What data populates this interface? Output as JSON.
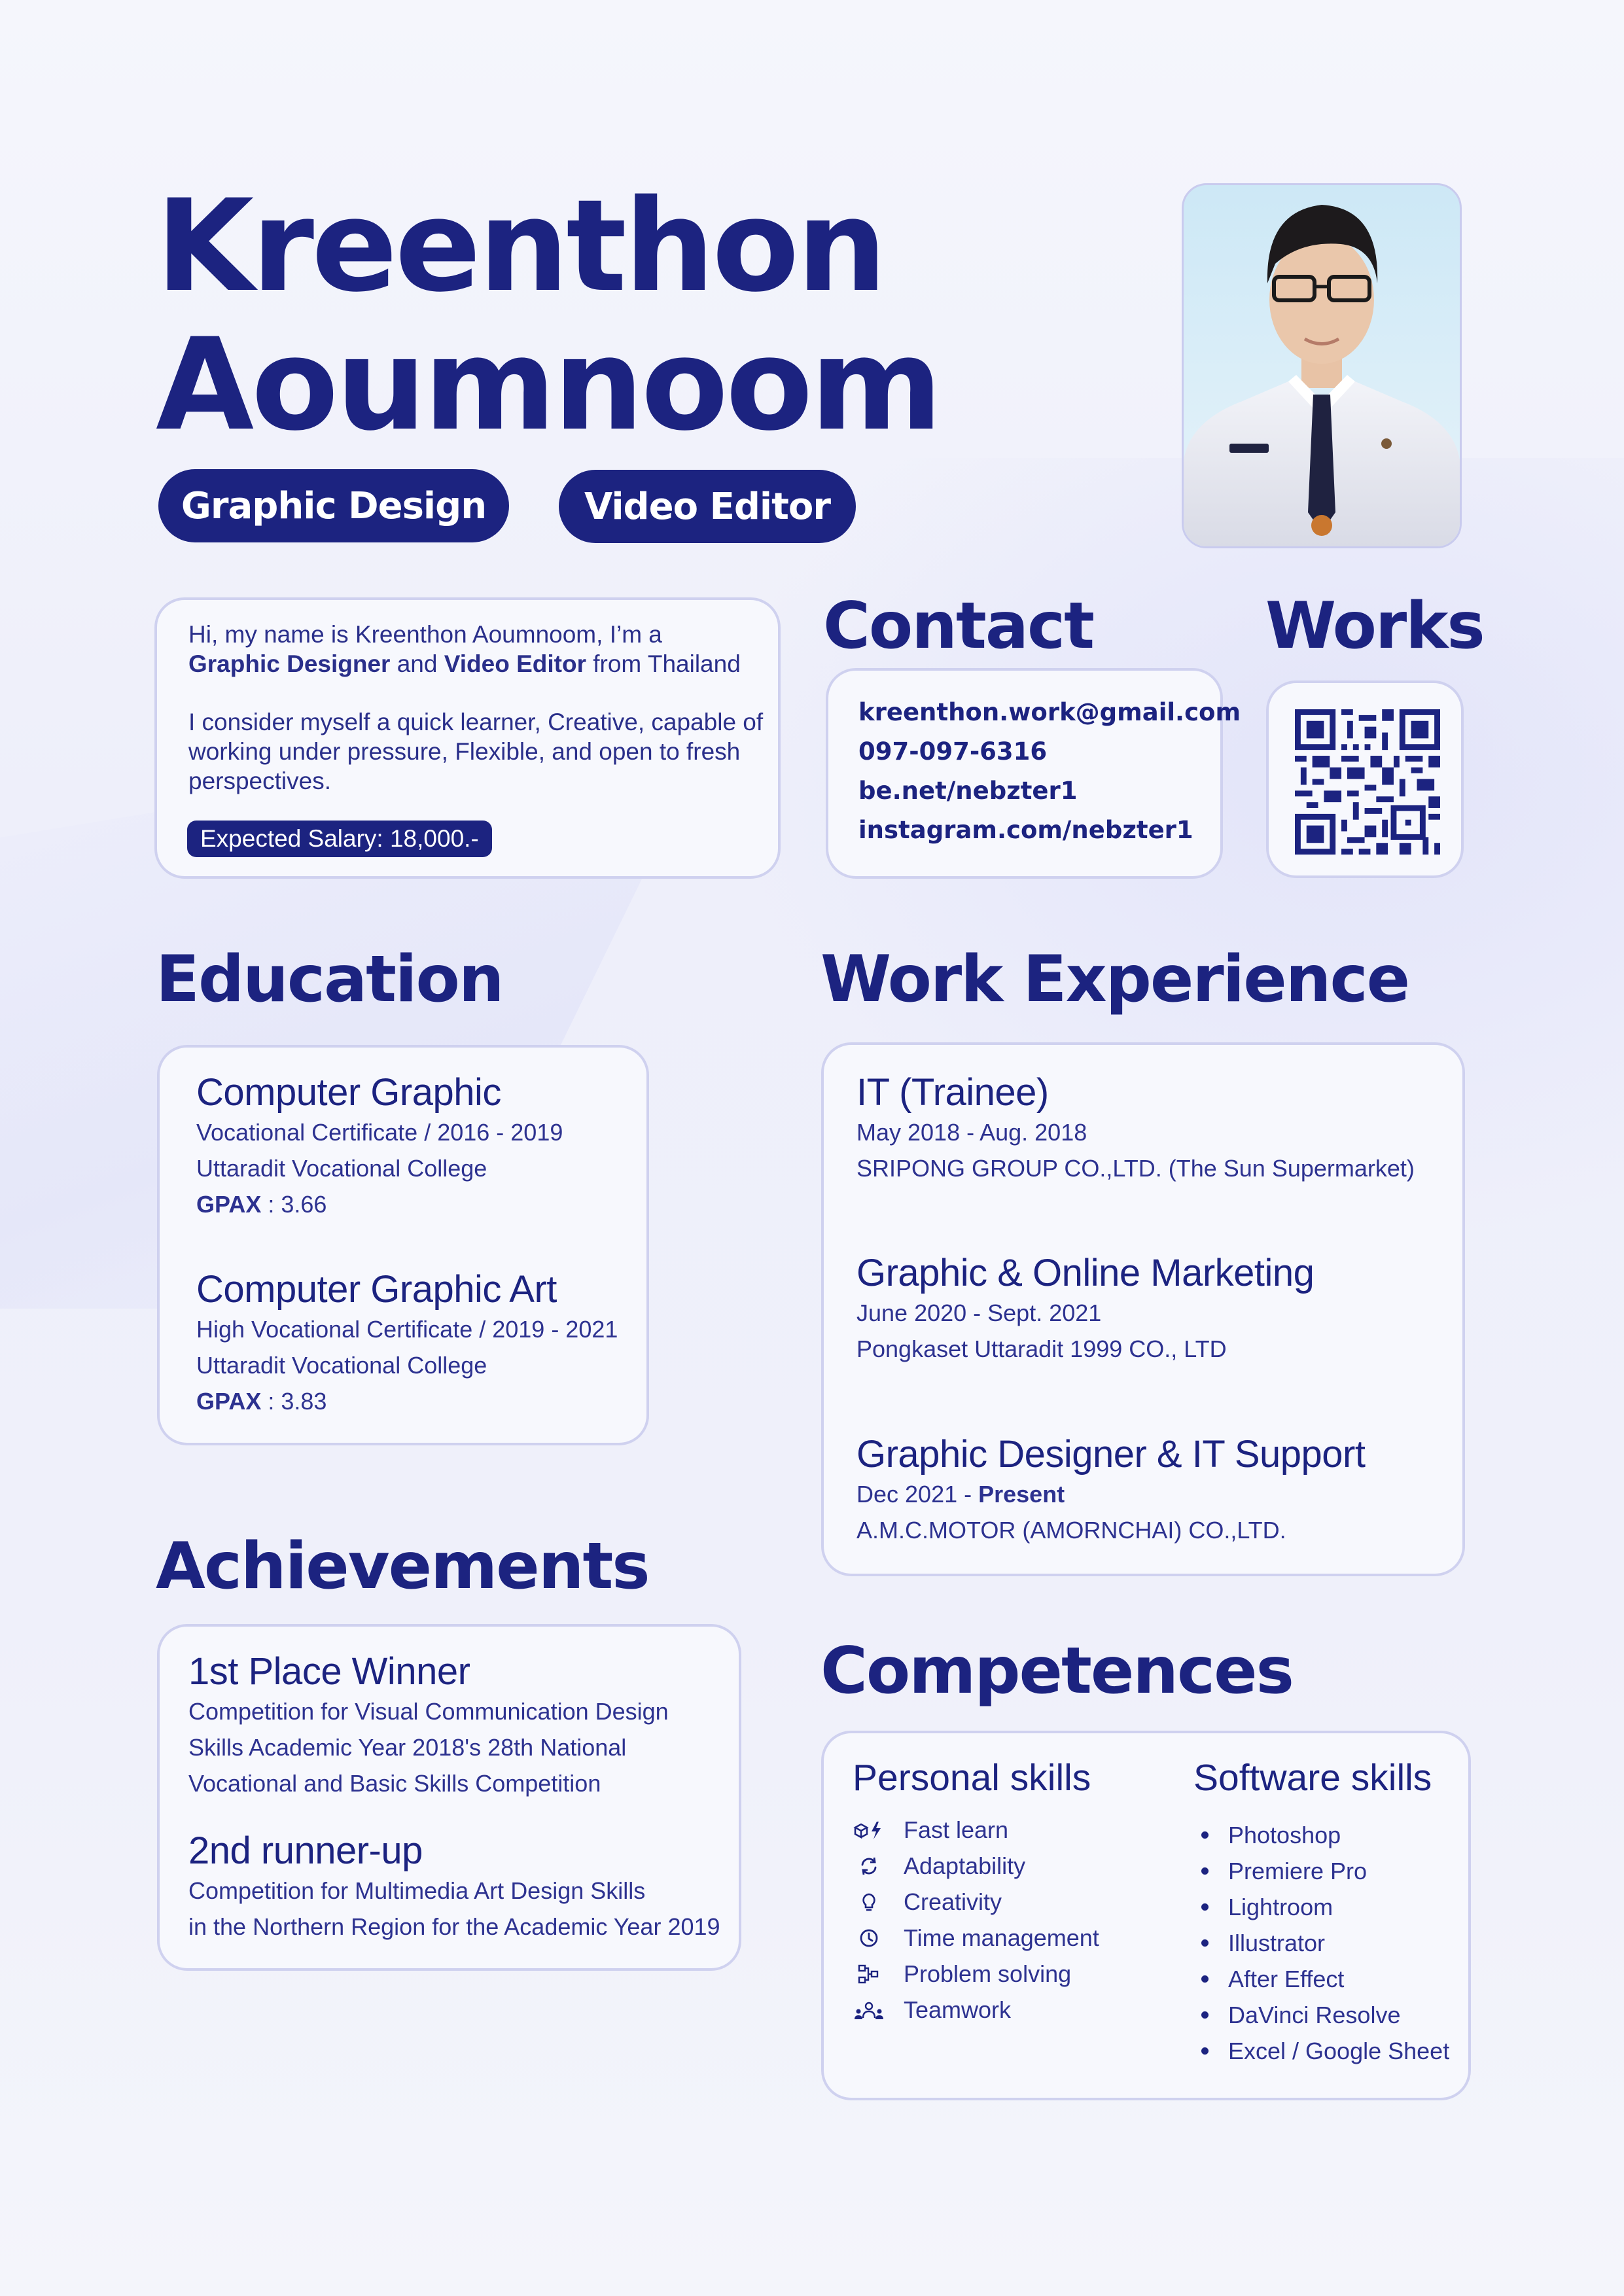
{
  "header": {
    "first_name": "Kreenthon",
    "last_name": "Aoumnoom",
    "roles": [
      "Graphic Design",
      "Video Editor"
    ]
  },
  "about": {
    "intro_prefix": "Hi, my name is Kreenthon  Aoumnoom, I’m a",
    "role1": "Graphic Designer",
    "and_text": " and ",
    "role2": "Video Editor",
    "from_text": " from Thailand",
    "paragraph": "I consider myself a quick learner, Creative, capable of working under pressure, Flexible, and open to fresh perspectives.",
    "salary": "Expected Salary: 18,000.-"
  },
  "contact": {
    "title": "Contact",
    "lines": [
      "kreenthon.work@gmail.com",
      "097-097-6316",
      "be.net/nebzter1",
      "instagram.com/nebzter1"
    ]
  },
  "works": {
    "title": "Works"
  },
  "education": {
    "title": "Education",
    "items": [
      {
        "title": "Computer Graphic",
        "line1": "Vocational Certificate / 2016 - 2019",
        "line2": "Uttaradit Vocational College",
        "gpax_label": "GPAX",
        "gpax_value": " : 3.66"
      },
      {
        "title": "Computer Graphic Art",
        "line1": "High Vocational Certificate / 2019 - 2021",
        "line2": "Uttaradit Vocational College",
        "gpax_label": "GPAX",
        "gpax_value": " : 3.83"
      }
    ]
  },
  "experience": {
    "title": "Work Experience",
    "items": [
      {
        "title": "IT  (Trainee)",
        "date": "May 2018 - Aug. 2018",
        "date_bold": "",
        "company": "SRIPONG GROUP CO.,LTD. (The Sun Supermarket)"
      },
      {
        "title": "Graphic & Online Marketing",
        "date": "June 2020 - Sept. 2021",
        "date_bold": "",
        "company": "Pongkaset Uttaradit 1999 CO., LTD"
      },
      {
        "title": "Graphic Designer & IT Support",
        "date": "Dec 2021 - ",
        "date_bold": "Present",
        "company": "A.M.C.MOTOR (AMORNCHAI) CO.,LTD."
      }
    ]
  },
  "achievements": {
    "title": "Achievements",
    "items": [
      {
        "title": "1st Place Winner",
        "lines": [
          "Competition for Visual Communication Design",
          "Skills Academic Year 2018's 28th National",
          "Vocational and Basic Skills Competition"
        ]
      },
      {
        "title": "2nd runner-up",
        "lines": [
          "Competition for Multimedia Art Design Skills",
          "in the Northern Region for the Academic Year 2019"
        ]
      }
    ]
  },
  "competences": {
    "title": "Competences",
    "personal_title": "Personal skills",
    "personal": [
      {
        "label": "Fast learn",
        "icon": "bolt-icon"
      },
      {
        "label": "Adaptability",
        "icon": "refresh-icon"
      },
      {
        "label": "Creativity",
        "icon": "lightbulb-icon"
      },
      {
        "label": "Time management",
        "icon": "clock-icon"
      },
      {
        "label": "Problem solving",
        "icon": "flowchart-icon"
      },
      {
        "label": "Teamwork",
        "icon": "team-icon"
      }
    ],
    "software_title": "Software skills",
    "software": [
      "Photoshop",
      "Premiere Pro",
      "Lightroom",
      "Illustrator",
      "After Effect",
      "DaVinci Resolve",
      "Excel / Google Sheet"
    ]
  },
  "colors": {
    "primary": "#1c2380",
    "card_border": "#cfd1ef",
    "background": "#eff0fa"
  }
}
